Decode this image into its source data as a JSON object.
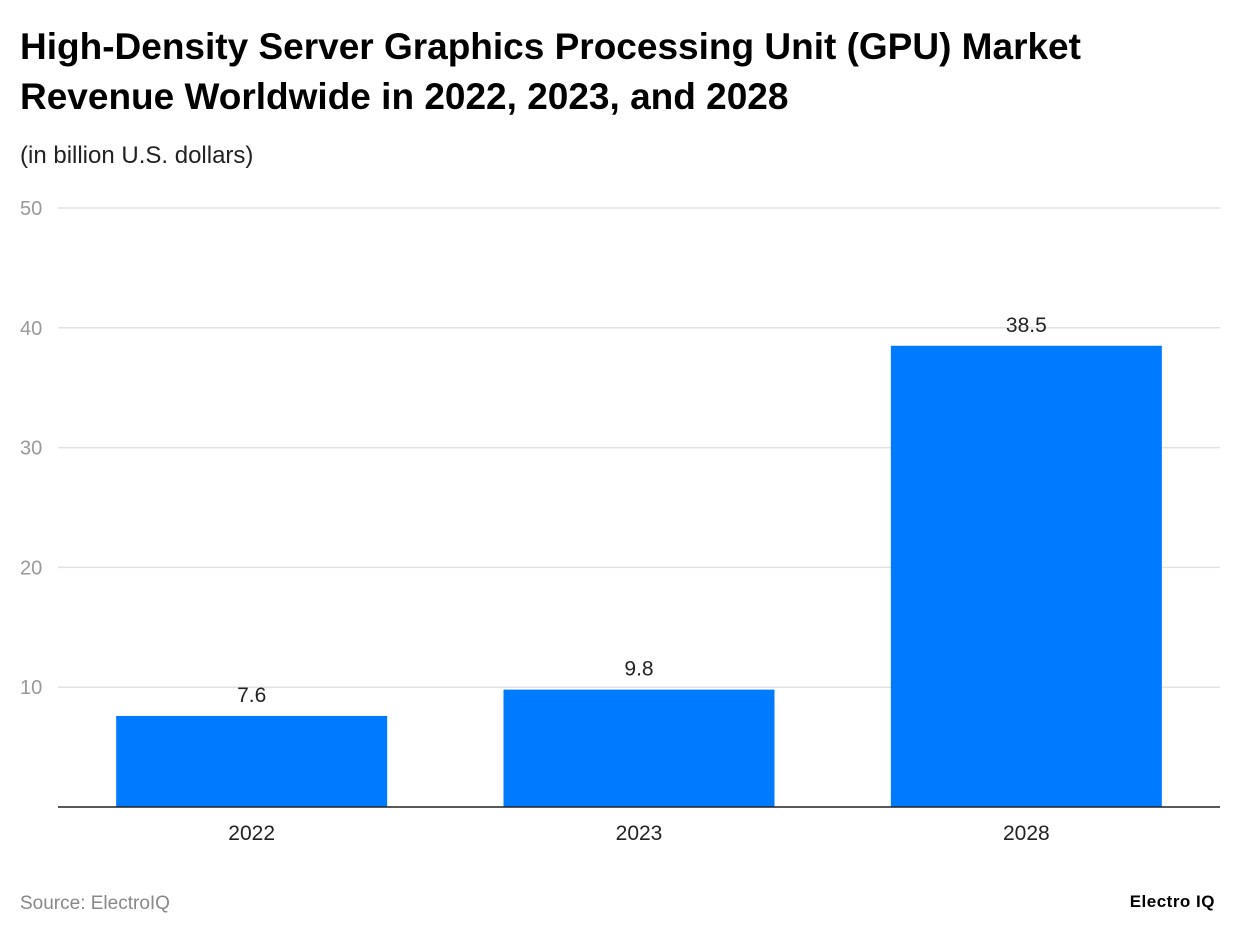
{
  "chart_data": {
    "type": "bar",
    "title": "High-Density Server Graphics Processing Unit (GPU) Market Revenue Worldwide in 2022, 2023, and 2028",
    "subtitle": "(in billion U.S. dollars)",
    "categories": [
      "2022",
      "2023",
      "2028"
    ],
    "values": [
      7.6,
      9.8,
      38.5
    ],
    "data_labels": [
      "7.6",
      "9.8",
      "38.5"
    ],
    "xlabel": "",
    "ylabel": "",
    "ylim": [
      0,
      50
    ],
    "yticks": [
      10,
      20,
      30,
      40,
      50
    ],
    "grid": true,
    "bar_color": "#007BFF",
    "legend": "none"
  },
  "footer": {
    "source": "Source: ElectroIQ",
    "logo": "Electro IQ"
  }
}
